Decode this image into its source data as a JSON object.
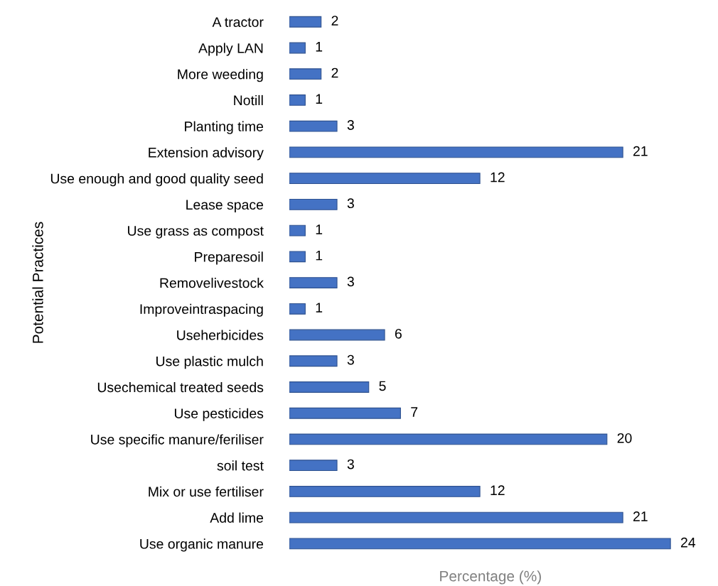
{
  "chart_data": {
    "type": "bar",
    "orientation": "horizontal",
    "xlabel": "Percentage (%)",
    "ylabel": "Potential Practices",
    "categories": [
      "A tractor",
      "Apply LAN",
      "More weeding",
      "Notill",
      "Planting time",
      "Extension advisory",
      "Use enough and good quality seed",
      "Lease space",
      "Use grass as compost",
      "Preparesoil",
      "Removelivestock",
      "Improveintraspacing",
      "Useherbicides",
      "Use plastic mulch",
      "Usechemical treated seeds",
      "Use pesticides",
      "Use specific manure/feriliser",
      "soil test",
      "Mix or use fertiliser",
      "Add lime",
      "Use organic manure"
    ],
    "values": [
      2,
      1,
      2,
      1,
      3,
      21,
      12,
      3,
      1,
      1,
      3,
      1,
      6,
      3,
      5,
      7,
      20,
      3,
      12,
      21,
      24
    ],
    "color": "#4472c4",
    "data_labels": true,
    "grid": false,
    "legend": false
  }
}
